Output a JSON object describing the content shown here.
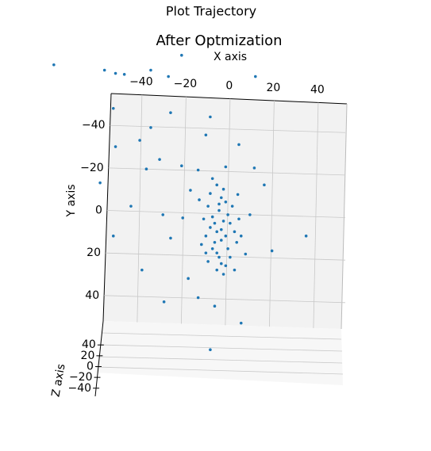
{
  "chart_data": {
    "type": "scatter3d",
    "title": "Plot Trajectory",
    "subtitle": "After Optmization",
    "x_label": "X axis",
    "y_label": "Y axis",
    "z_label": "Z axis",
    "color": "#1f77b4",
    "grid": true,
    "xlim": [
      -54,
      53
    ],
    "ylim": [
      -55,
      52
    ],
    "zlim": [
      -55,
      52
    ],
    "xticks": [
      {
        "value": -40,
        "label": "−40"
      },
      {
        "value": -20,
        "label": "−20"
      },
      0,
      20,
      40
    ],
    "yticks": [
      {
        "value": -40,
        "label": "−40"
      },
      {
        "value": -20,
        "label": "−20"
      },
      0,
      20,
      40
    ],
    "zticks": [
      40,
      20,
      0,
      {
        "value": -20,
        "label": "−20"
      },
      {
        "value": -40,
        "label": "−40"
      }
    ],
    "x": [
      -80,
      -57,
      -52,
      -48,
      -36,
      -28,
      -22,
      11.5,
      -53,
      -52,
      -59,
      -53,
      -45,
      -40,
      -30,
      -9,
      5,
      34.5,
      19,
      15.5,
      -27,
      -9,
      -41,
      -36,
      -32,
      -38,
      -22,
      4,
      11,
      -11,
      -19,
      -14.5,
      -7,
      2,
      7,
      9,
      -21.5,
      -27,
      -30.5,
      -18,
      -14.5,
      -2,
      3.5,
      -5,
      -3,
      -8,
      -6,
      -2,
      -10,
      -4,
      -1,
      -7,
      -9,
      -3,
      0,
      -6,
      -11,
      2,
      -5,
      -8,
      -4,
      -1,
      -12,
      -6,
      -2,
      3,
      -9,
      -7,
      -4,
      1,
      -13,
      -5,
      -3,
      -10,
      0,
      4,
      -14,
      -6,
      -8,
      5,
      -2,
      -11,
      -4
    ],
    "y": [
      -68.5,
      -66,
      -64.5,
      -64,
      -66,
      -63,
      -73,
      -63,
      -48,
      -30,
      -13,
      12,
      -2,
      28,
      43,
      65.5,
      53,
      12,
      19,
      -12,
      -46,
      -44,
      -33,
      -39,
      -24,
      -19.5,
      -21,
      -31,
      -20,
      -35.5,
      32,
      41,
      45,
      28,
      20.5,
      2,
      3.5,
      13,
      2,
      -9.5,
      -19,
      -20.5,
      -7.5,
      0,
      5,
      3,
      10,
      12,
      -2,
      -6,
      2,
      15,
      8,
      -10,
      6,
      20,
      12,
      10,
      -3,
      18,
      25,
      18,
      4,
      -12,
      -4,
      15,
      -8,
      6,
      9,
      -2,
      16,
      22,
      30,
      24,
      22,
      4,
      -5,
      28,
      -15,
      12,
      26,
      20,
      14
    ]
  }
}
